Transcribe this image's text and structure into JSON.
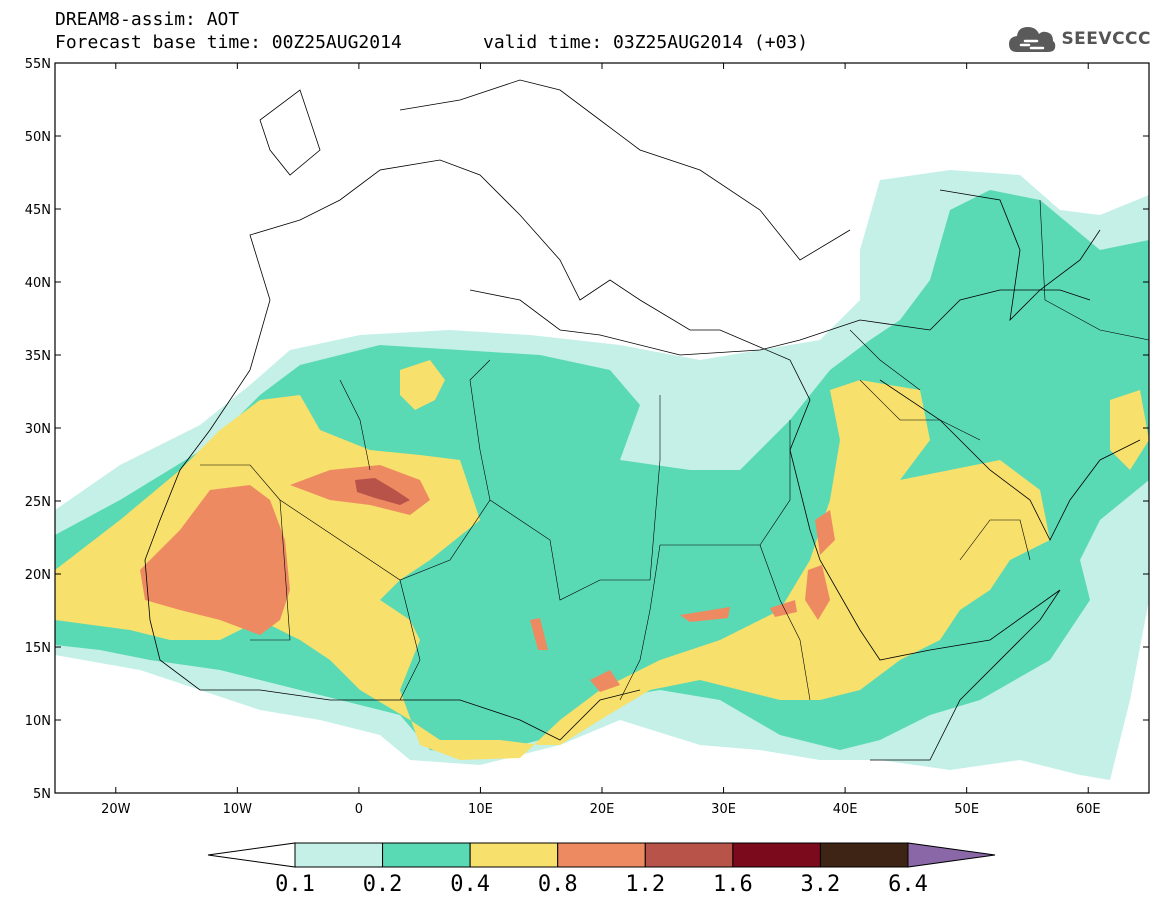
{
  "header": {
    "line1": "DREAM8-assim: AOT",
    "base_time": "Forecast base time: 00Z25AUG2014",
    "valid_time": "valid time: 03Z25AUG2014 (+03)"
  },
  "logo": {
    "text": "SEEVCCC",
    "icon": "cloud-icon"
  },
  "map": {
    "projection": "lat-lon",
    "lon_range": [
      -25,
      65
    ],
    "lat_range": [
      5,
      55
    ],
    "lon_ticks": [
      "20W",
      "10W",
      "0",
      "10E",
      "20E",
      "30E",
      "40E",
      "50E",
      "60E"
    ],
    "lat_ticks": [
      "55N",
      "50N",
      "45N",
      "40N",
      "35N",
      "30N",
      "25N",
      "20N",
      "15N",
      "10N",
      "5N"
    ]
  },
  "colorbar": {
    "labels": [
      "0.1",
      "0.2",
      "0.4",
      "0.8",
      "1.2",
      "1.6",
      "3.2",
      "6.4"
    ],
    "colors": [
      "#c4f0e8",
      "#5ad9b5",
      "#f7e06b",
      "#ee8a62",
      "#b8534a",
      "#7a0a1c",
      "#3e2414",
      "#8a68a8"
    ],
    "under_color": "#ffffff"
  }
}
